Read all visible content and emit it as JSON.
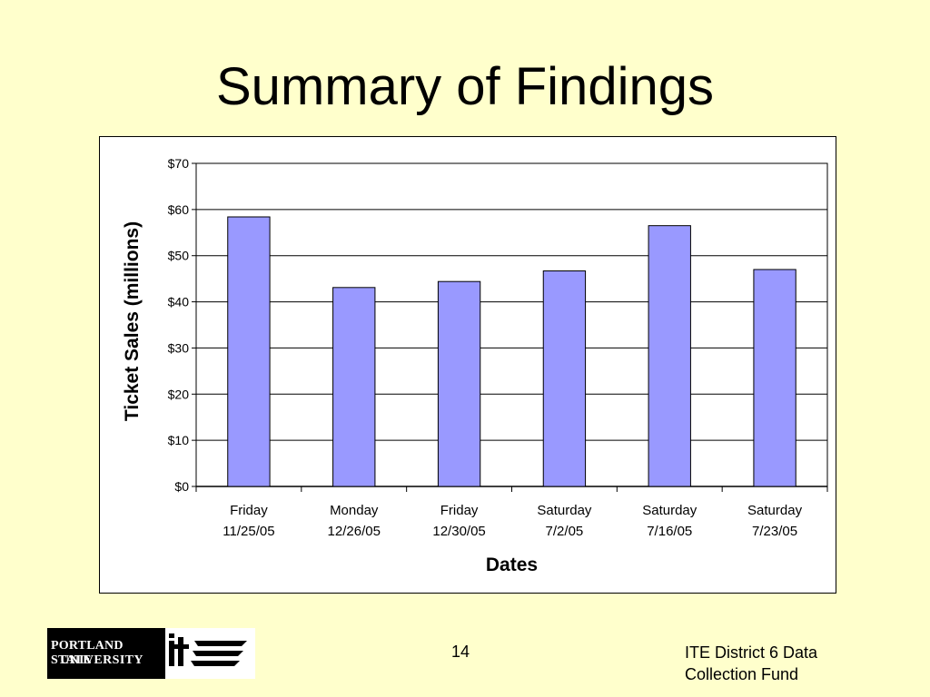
{
  "slide": {
    "title": "Summary of Findings",
    "page_number": "14",
    "footer_line1": "ITE District 6 Data",
    "footer_line2": "Collection Fund"
  },
  "logo": {
    "text_line1": "PORTLAND STATE",
    "text_line2": "UNIVERSITY",
    "mark": "ite"
  },
  "colors": {
    "background": "#ffffcc",
    "bar_fill": "#9999ff",
    "bar_stroke": "#000000"
  },
  "chart_data": {
    "type": "bar",
    "title": "",
    "xlabel": "Dates",
    "ylabel": "Ticket Sales (millions)",
    "categories": [
      [
        "Friday",
        "11/25/05"
      ],
      [
        "Monday",
        "12/26/05"
      ],
      [
        "Friday",
        "12/30/05"
      ],
      [
        "Saturday",
        "7/2/05"
      ],
      [
        "Saturday",
        "7/16/05"
      ],
      [
        "Saturday",
        "7/23/05"
      ]
    ],
    "values": [
      58.4,
      43.1,
      44.4,
      46.7,
      56.5,
      47.0
    ],
    "ylim": [
      0,
      70
    ],
    "yticks": [
      0,
      10,
      20,
      30,
      40,
      50,
      60,
      70
    ],
    "ytick_labels": [
      "$0",
      "$10",
      "$20",
      "$30",
      "$40",
      "$50",
      "$60",
      "$70"
    ],
    "grid": true,
    "legend": "none"
  }
}
